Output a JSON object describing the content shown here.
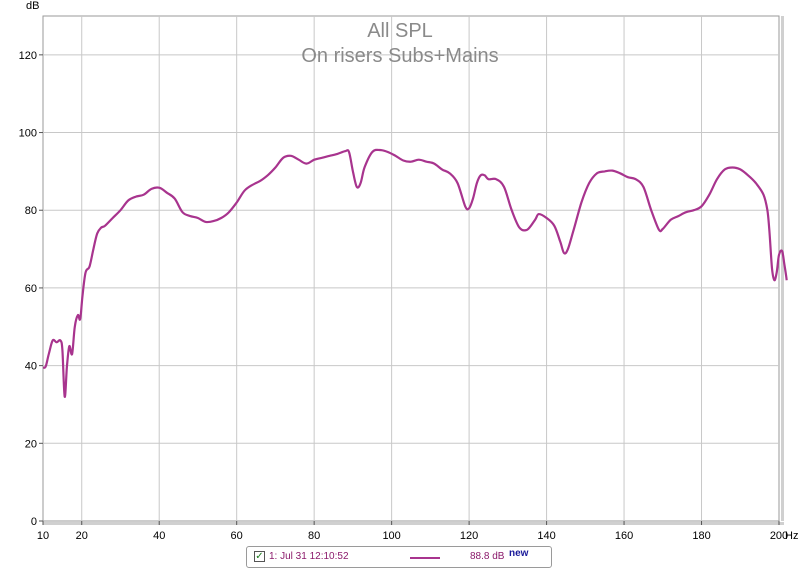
{
  "chart_data": {
    "type": "line",
    "title": "All SPL",
    "subtitle": "On risers Subs+Mains",
    "ylabel": "dB",
    "xunit": "Hz",
    "xlim": [
      10,
      200
    ],
    "ylim": [
      0,
      130
    ],
    "x_ticks": [
      10,
      20,
      40,
      60,
      80,
      100,
      120,
      140,
      160,
      180,
      200
    ],
    "y_ticks": [
      0,
      20,
      40,
      60,
      80,
      100,
      120
    ],
    "grid": true,
    "series": [
      {
        "name": "1: Jul 31 12:10:52",
        "color": "#a8348e",
        "points": [
          [
            10,
            39.5
          ],
          [
            10.7,
            39.8
          ],
          [
            11.5,
            43
          ],
          [
            12.5,
            46.5
          ],
          [
            13.5,
            46
          ],
          [
            14.5,
            46.5
          ],
          [
            15,
            44
          ],
          [
            15.6,
            32
          ],
          [
            16.2,
            40
          ],
          [
            16.8,
            45
          ],
          [
            17.5,
            43
          ],
          [
            18.2,
            50
          ],
          [
            19,
            53
          ],
          [
            19.6,
            52
          ],
          [
            20.2,
            58
          ],
          [
            21,
            64
          ],
          [
            22,
            65.5
          ],
          [
            23,
            70
          ],
          [
            24,
            74
          ],
          [
            25,
            75.5
          ],
          [
            26,
            76
          ],
          [
            28,
            78
          ],
          [
            30,
            80
          ],
          [
            32,
            82.5
          ],
          [
            34,
            83.5
          ],
          [
            36,
            84
          ],
          [
            38,
            85.5
          ],
          [
            40,
            85.8
          ],
          [
            42,
            84.5
          ],
          [
            44,
            83
          ],
          [
            46,
            79.5
          ],
          [
            48,
            78.5
          ],
          [
            50,
            78
          ],
          [
            52,
            77
          ],
          [
            54,
            77.2
          ],
          [
            56,
            78
          ],
          [
            58,
            79.5
          ],
          [
            60,
            82
          ],
          [
            62,
            85
          ],
          [
            64,
            86.5
          ],
          [
            66,
            87.5
          ],
          [
            68,
            89
          ],
          [
            70,
            91
          ],
          [
            72,
            93.5
          ],
          [
            74,
            94
          ],
          [
            76,
            93
          ],
          [
            78,
            92
          ],
          [
            80,
            93
          ],
          [
            82,
            93.5
          ],
          [
            84,
            94
          ],
          [
            86,
            94.5
          ],
          [
            88,
            95.2
          ],
          [
            89,
            95
          ],
          [
            90,
            90
          ],
          [
            91,
            86
          ],
          [
            92,
            87
          ],
          [
            93,
            91
          ],
          [
            95,
            95
          ],
          [
            97,
            95.5
          ],
          [
            99,
            95
          ],
          [
            101,
            94
          ],
          [
            103,
            92.8
          ],
          [
            105,
            92.5
          ],
          [
            107,
            93
          ],
          [
            109,
            92.5
          ],
          [
            111,
            92
          ],
          [
            113,
            90.5
          ],
          [
            115,
            89.5
          ],
          [
            117,
            87
          ],
          [
            119,
            81
          ],
          [
            120,
            80.5
          ],
          [
            121,
            83
          ],
          [
            122,
            87
          ],
          [
            123,
            89
          ],
          [
            124,
            89
          ],
          [
            125,
            88
          ],
          [
            127,
            88
          ],
          [
            129,
            86
          ],
          [
            131,
            80
          ],
          [
            133,
            75.5
          ],
          [
            135,
            75
          ],
          [
            137,
            77.5
          ],
          [
            138,
            79
          ],
          [
            140,
            78
          ],
          [
            142,
            76
          ],
          [
            143.5,
            72
          ],
          [
            144.5,
            69
          ],
          [
            145.5,
            70
          ],
          [
            147,
            75
          ],
          [
            149,
            82
          ],
          [
            151,
            87
          ],
          [
            153,
            89.5
          ],
          [
            155,
            90
          ],
          [
            157,
            90.2
          ],
          [
            159,
            89.5
          ],
          [
            161,
            88.5
          ],
          [
            163,
            88
          ],
          [
            165,
            86
          ],
          [
            167,
            80
          ],
          [
            169,
            75
          ],
          [
            170,
            75.2
          ],
          [
            172,
            77.5
          ],
          [
            174,
            78.5
          ],
          [
            176,
            79.5
          ],
          [
            178,
            80
          ],
          [
            180,
            81
          ],
          [
            182,
            84
          ],
          [
            184,
            88
          ],
          [
            186,
            90.5
          ],
          [
            188,
            91
          ],
          [
            190,
            90.5
          ],
          [
            192,
            89
          ],
          [
            194,
            87
          ],
          [
            196,
            84
          ],
          [
            197,
            80
          ],
          [
            197.5,
            75
          ],
          [
            198.2,
            65
          ],
          [
            198.8,
            62
          ],
          [
            199.4,
            64
          ],
          [
            200,
            68.5
          ],
          [
            200.8,
            69.5
          ],
          [
            201.4,
            66
          ],
          [
            202,
            62
          ]
        ]
      }
    ]
  },
  "legend": {
    "entry_label": "1: Jul 31 12:10:52",
    "value": "88.8 dB",
    "badge": "new",
    "checked": true
  }
}
